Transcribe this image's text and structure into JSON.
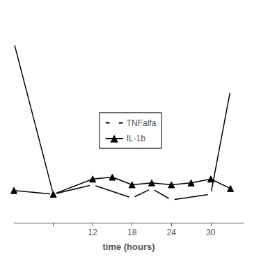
{
  "chart_data": {
    "type": "line",
    "xlabel": "time (hours)",
    "series": [
      {
        "name": "TNFalfa",
        "color": "#000000",
        "marker": "circle",
        "x": [
          0,
          6,
          12,
          18,
          21,
          24,
          30,
          33
        ],
        "values": [
          9.0,
          1.0,
          1.5,
          0.8,
          1.3,
          0.7,
          1.0,
          6.5
        ]
      },
      {
        "name": "IL-1b",
        "color": "#000000",
        "marker": "triangle",
        "x": [
          0,
          6,
          12,
          15,
          18,
          21,
          24,
          27,
          30,
          33
        ],
        "values": [
          1.2,
          1.0,
          1.8,
          1.9,
          1.5,
          1.6,
          1.5,
          1.6,
          1.8,
          1.3
        ]
      }
    ],
    "xlim": [
      0,
      35
    ],
    "xticks": [
      {
        "value": 6,
        "label": null
      },
      12,
      18,
      24,
      30
    ],
    "ylim": [
      -0.5,
      10.5
    ],
    "tick_labels": "x",
    "grid": false,
    "legend": "center"
  }
}
